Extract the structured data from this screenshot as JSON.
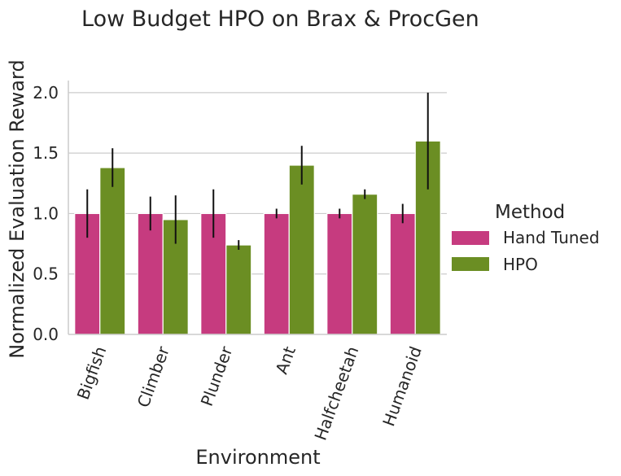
{
  "chart_data": {
    "type": "bar",
    "title": "Low Budget HPO on Brax & ProcGen",
    "xlabel": "Environment",
    "ylabel": "Normalized Evaluation Reward",
    "ylim": [
      0,
      2.1
    ],
    "yticks": [
      0.0,
      0.5,
      1.0,
      1.5,
      2.0
    ],
    "ytick_labels": [
      "0.0",
      "0.5",
      "1.0",
      "1.5",
      "2.0"
    ],
    "grid": "horizontal",
    "categories": [
      "Bigfish",
      "Climber",
      "Plunder",
      "Ant",
      "Halfcheetah",
      "Humanoid"
    ],
    "series": [
      {
        "name": "Hand Tuned",
        "color": "#c63b7f",
        "values": [
          1.0,
          1.0,
          1.0,
          1.0,
          1.0,
          1.0
        ],
        "err_low": [
          0.8,
          0.86,
          0.8,
          0.96,
          0.96,
          0.92
        ],
        "err_high": [
          1.2,
          1.14,
          1.2,
          1.04,
          1.04,
          1.08
        ]
      },
      {
        "name": "HPO",
        "color": "#6b8e23",
        "values": [
          1.38,
          0.95,
          0.74,
          1.4,
          1.16,
          1.6
        ],
        "err_low": [
          1.22,
          0.75,
          0.7,
          1.24,
          1.12,
          1.2
        ],
        "err_high": [
          1.54,
          1.15,
          0.78,
          1.56,
          1.2,
          2.0
        ]
      }
    ],
    "legend": {
      "title": "Method",
      "placement": "center-right",
      "entries": [
        "Hand Tuned",
        "HPO"
      ]
    }
  }
}
